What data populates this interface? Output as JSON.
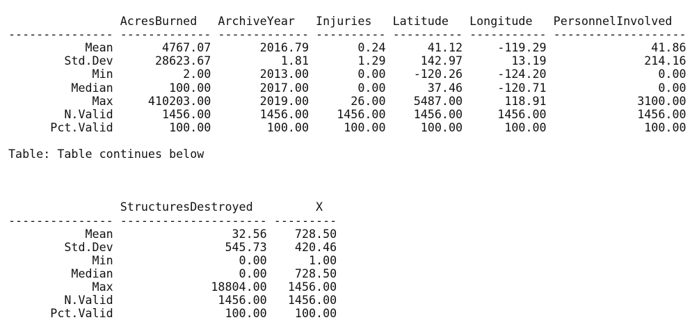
{
  "table1": {
    "header": "                AcresBurned   ArchiveYear   Injuries   Latitude   Longitude   PersonnelInvolved",
    "rule": "--------------- ------------- ------------- ---------- ---------- ----------- -------------------",
    "rows": [
      "           Mean       4767.07       2016.79       0.24      41.12     -119.29               41.86",
      "        Std.Dev      28623.67          1.81       1.29     142.97       13.19              214.16",
      "            Min          2.00       2013.00       0.00    -120.26     -124.20                0.00",
      "         Median        100.00       2017.00       0.00      37.46     -120.71                0.00",
      "            Max     410203.00       2019.00      26.00    5487.00      118.91             3100.00",
      "        N.Valid       1456.00       1456.00    1456.00    1456.00     1456.00             1456.00",
      "      Pct.Valid        100.00        100.00     100.00     100.00      100.00              100.00"
    ]
  },
  "caption": "Table: Table continues below",
  "table2": {
    "header": "                StructuresDestroyed         X",
    "rule": "--------------- --------------------- ---------",
    "rows": [
      "           Mean                 32.56    728.50",
      "        Std.Dev                545.73    420.46",
      "            Min                  0.00      1.00",
      "         Median                  0.00    728.50",
      "            Max              18804.00   1456.00",
      "        N.Valid               1456.00   1456.00",
      "      Pct.Valid                100.00    100.00"
    ]
  }
}
